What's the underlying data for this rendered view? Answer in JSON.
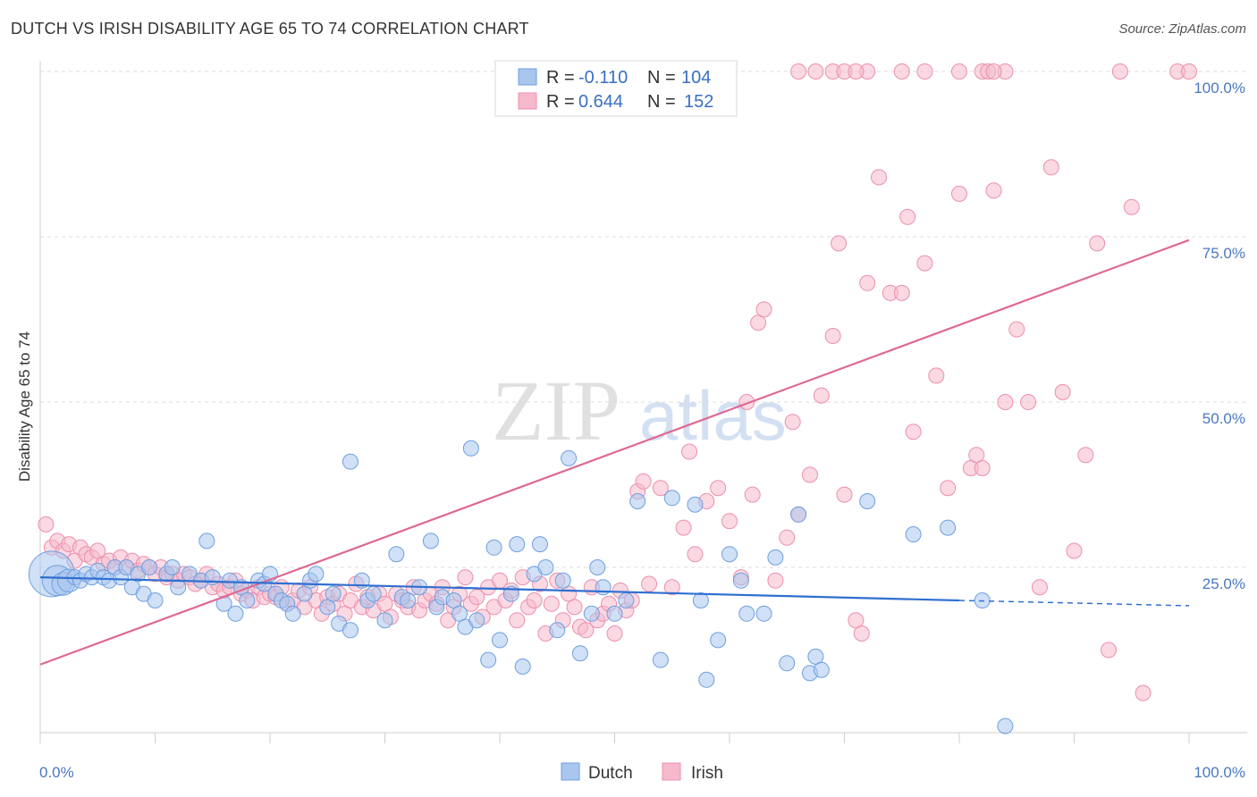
{
  "header": {
    "title": "DUTCH VS IRISH DISABILITY AGE 65 TO 74 CORRELATION CHART",
    "source": "Source: ZipAtlas.com"
  },
  "watermark": {
    "zip": "ZIP",
    "atlas": "atlas"
  },
  "colors": {
    "dutch_fill": "#a9c6ef",
    "dutch_stroke": "#6f9fe0",
    "dutch_line": "#2f6fd0",
    "irish_fill": "#f6b9cc",
    "irish_stroke": "#ec8fab",
    "irish_line": "#e06893"
  },
  "legend": {
    "dutch": {
      "r_label": "R =",
      "r_value": "-0.110",
      "n_label": "N =",
      "n_value": "104"
    },
    "irish": {
      "r_label": "R =",
      "r_value": "0.644",
      "n_label": "N =",
      "n_value": "152"
    }
  },
  "chart_data": {
    "type": "scatter",
    "title": "DUTCH VS IRISH DISABILITY AGE 65 TO 74 CORRELATION CHART",
    "xlabel": "",
    "ylabel": "Disability Age 65 to 74",
    "xlim": [
      0,
      100
    ],
    "ylim": [
      0,
      100
    ],
    "x_tick_labels": [
      "0.0%",
      "100.0%"
    ],
    "y_tick_labels": [
      "25.0%",
      "50.0%",
      "75.0%",
      "100.0%"
    ],
    "y_ticks": [
      25,
      50,
      75,
      100
    ],
    "grid": true,
    "legend_position": "top-center",
    "bottom_legend": [
      "Dutch",
      "Irish"
    ],
    "series": [
      {
        "name": "Dutch",
        "r": -0.11,
        "n": 104,
        "trend": {
          "x0": 0,
          "y0": 23.5,
          "x1": 80,
          "y1": 20.0,
          "dashed_to": 100,
          "dashed_y": 19.2
        },
        "points": [
          [
            1,
            24,
            3
          ],
          [
            1.5,
            23,
            2
          ],
          [
            2,
            22.5,
            1.5
          ],
          [
            2.5,
            23,
            1.5
          ],
          [
            3,
            23.5,
            1
          ],
          [
            3.5,
            23,
            1
          ],
          [
            4,
            24,
            1
          ],
          [
            4.5,
            23.5,
            1
          ],
          [
            5,
            24.5,
            1
          ],
          [
            5.5,
            23.5,
            1
          ],
          [
            6,
            23,
            1
          ],
          [
            6.5,
            25,
            1
          ],
          [
            7,
            23.5,
            1
          ],
          [
            7.5,
            25,
            1
          ],
          [
            8,
            22,
            1
          ],
          [
            8.5,
            24,
            1
          ],
          [
            9,
            21,
            1
          ],
          [
            9.5,
            25,
            1
          ],
          [
            10,
            20,
            1
          ],
          [
            11,
            24,
            1
          ],
          [
            11.5,
            25,
            1
          ],
          [
            12,
            22,
            1
          ],
          [
            13,
            24,
            1
          ],
          [
            14,
            23,
            1
          ],
          [
            14.5,
            29,
            1
          ],
          [
            15,
            23.5,
            1
          ],
          [
            16,
            19.5,
            1
          ],
          [
            16.5,
            23,
            1
          ],
          [
            17,
            18,
            1
          ],
          [
            17.5,
            22,
            1
          ],
          [
            18,
            20,
            1
          ],
          [
            19,
            23,
            1
          ],
          [
            19.5,
            22.5,
            1
          ],
          [
            20,
            24,
            1
          ],
          [
            20.5,
            21,
            1
          ],
          [
            21,
            20,
            1
          ],
          [
            21.5,
            19.5,
            1
          ],
          [
            22,
            18,
            1
          ],
          [
            23,
            21,
            1
          ],
          [
            23.5,
            23,
            1
          ],
          [
            24,
            24,
            1
          ],
          [
            25,
            19,
            1
          ],
          [
            25.5,
            21,
            1
          ],
          [
            26,
            16.5,
            1
          ],
          [
            27,
            41,
            1
          ],
          [
            27,
            15.5,
            1
          ],
          [
            28,
            23,
            1
          ],
          [
            28.5,
            20,
            1
          ],
          [
            29,
            21,
            1
          ],
          [
            30,
            17,
            1
          ],
          [
            31,
            27,
            1
          ],
          [
            31.5,
            20.5,
            1
          ],
          [
            32,
            20,
            1
          ],
          [
            33,
            22,
            1
          ],
          [
            34,
            29,
            1
          ],
          [
            34.5,
            19,
            1
          ],
          [
            35,
            20.5,
            1
          ],
          [
            36,
            20,
            1
          ],
          [
            36.5,
            18,
            1
          ],
          [
            37,
            16,
            1
          ],
          [
            37.5,
            43,
            1
          ],
          [
            38,
            17,
            1
          ],
          [
            39,
            11,
            1
          ],
          [
            39.5,
            28,
            1
          ],
          [
            40,
            14,
            1
          ],
          [
            41,
            21,
            1
          ],
          [
            41.5,
            28.5,
            1
          ],
          [
            42,
            10,
            1
          ],
          [
            43,
            24,
            1
          ],
          [
            43.5,
            28.5,
            1
          ],
          [
            44,
            25,
            1
          ],
          [
            45,
            15.5,
            1
          ],
          [
            45.5,
            23,
            1
          ],
          [
            46,
            41.5,
            1
          ],
          [
            47,
            12,
            1
          ],
          [
            48,
            18,
            1
          ],
          [
            48.5,
            25,
            1
          ],
          [
            49,
            22,
            1
          ],
          [
            50,
            18,
            1
          ],
          [
            51,
            20,
            1
          ],
          [
            52,
            35,
            1
          ],
          [
            54,
            11,
            1
          ],
          [
            55,
            35.5,
            1
          ],
          [
            57,
            34.5,
            1
          ],
          [
            57.5,
            20,
            1
          ],
          [
            58,
            8,
            1
          ],
          [
            59,
            14,
            1
          ],
          [
            60,
            27,
            1
          ],
          [
            61,
            23,
            1
          ],
          [
            61.5,
            18,
            1
          ],
          [
            63,
            18,
            1
          ],
          [
            64,
            26.5,
            1
          ],
          [
            65,
            10.5,
            1
          ],
          [
            66,
            33,
            1
          ],
          [
            67,
            9,
            1
          ],
          [
            67.5,
            11.5,
            1
          ],
          [
            68,
            9.5,
            1
          ],
          [
            72,
            35,
            1
          ],
          [
            76,
            30,
            1
          ],
          [
            79,
            31,
            1
          ],
          [
            82,
            20,
            1
          ],
          [
            84,
            1,
            1
          ]
        ]
      },
      {
        "name": "Irish",
        "r": 0.644,
        "n": 152,
        "trend": {
          "x0": 0,
          "y0": 10.3,
          "x1": 100,
          "y1": 74.5
        },
        "points": [
          [
            0.5,
            31.5
          ],
          [
            1,
            28
          ],
          [
            1.5,
            29
          ],
          [
            2,
            27.5
          ],
          [
            2.5,
            28.5
          ],
          [
            3,
            26
          ],
          [
            3.5,
            28
          ],
          [
            4,
            27
          ],
          [
            4.5,
            26.5
          ],
          [
            5,
            27.5
          ],
          [
            5.5,
            25.5
          ],
          [
            6,
            26
          ],
          [
            6.5,
            25
          ],
          [
            7,
            26.5
          ],
          [
            7.5,
            25
          ],
          [
            8,
            26
          ],
          [
            8.5,
            24.5
          ],
          [
            9,
            25.5
          ],
          [
            9.5,
            25
          ],
          [
            10,
            24
          ],
          [
            10.5,
            25
          ],
          [
            11,
            23.5
          ],
          [
            11.5,
            24
          ],
          [
            12,
            23
          ],
          [
            12.5,
            24
          ],
          [
            13,
            23.5
          ],
          [
            13.5,
            22.5
          ],
          [
            14,
            23
          ],
          [
            14.5,
            24
          ],
          [
            15,
            22
          ],
          [
            15.5,
            22.5
          ],
          [
            16,
            21.5
          ],
          [
            16.5,
            22
          ],
          [
            17,
            23
          ],
          [
            17.5,
            21
          ],
          [
            18,
            21.5
          ],
          [
            18.5,
            20
          ],
          [
            19,
            22
          ],
          [
            19.5,
            20.5
          ],
          [
            20,
            21
          ],
          [
            20.5,
            20.5
          ],
          [
            21,
            22
          ],
          [
            21.5,
            19.5
          ],
          [
            22,
            20
          ],
          [
            22.5,
            21.5
          ],
          [
            23,
            19
          ],
          [
            23.5,
            22
          ],
          [
            24,
            20
          ],
          [
            24.5,
            18
          ],
          [
            25,
            20.5
          ],
          [
            25.5,
            19.5
          ],
          [
            26,
            21
          ],
          [
            26.5,
            18
          ],
          [
            27,
            20
          ],
          [
            27.5,
            22.5
          ],
          [
            28,
            19
          ],
          [
            28.5,
            20.5
          ],
          [
            29,
            18.5
          ],
          [
            29.5,
            21
          ],
          [
            30,
            19.5
          ],
          [
            30.5,
            17.5
          ],
          [
            31,
            21
          ],
          [
            31.5,
            20
          ],
          [
            32,
            19
          ],
          [
            32.5,
            22
          ],
          [
            33,
            18.5
          ],
          [
            33.5,
            20
          ],
          [
            34,
            21
          ],
          [
            34.5,
            19.5
          ],
          [
            35,
            22
          ],
          [
            35.5,
            17
          ],
          [
            36,
            19
          ],
          [
            36.5,
            21
          ],
          [
            37,
            23.5
          ],
          [
            37.5,
            19.5
          ],
          [
            38,
            20.5
          ],
          [
            38.5,
            17.5
          ],
          [
            39,
            22
          ],
          [
            39.5,
            19
          ],
          [
            40,
            23
          ],
          [
            40.5,
            20
          ],
          [
            41,
            21.5
          ],
          [
            41.5,
            17
          ],
          [
            42,
            23.5
          ],
          [
            42.5,
            19
          ],
          [
            43,
            20
          ],
          [
            43.5,
            22.5
          ],
          [
            44,
            15
          ],
          [
            44.5,
            19.5
          ],
          [
            45,
            23
          ],
          [
            45.5,
            17
          ],
          [
            46,
            21
          ],
          [
            46.5,
            19
          ],
          [
            47,
            16
          ],
          [
            47.5,
            15.5
          ],
          [
            48,
            22
          ],
          [
            48.5,
            17
          ],
          [
            49,
            18
          ],
          [
            49.5,
            19.5
          ],
          [
            50,
            15
          ],
          [
            50.5,
            21.5
          ],
          [
            51,
            18.5
          ],
          [
            51.5,
            20
          ],
          [
            52,
            36.5
          ],
          [
            52.5,
            38
          ],
          [
            53,
            22.5
          ],
          [
            54,
            37
          ],
          [
            55,
            22
          ],
          [
            56,
            31
          ],
          [
            56.5,
            42.5
          ],
          [
            57,
            27
          ],
          [
            58,
            35
          ],
          [
            59,
            37
          ],
          [
            60,
            32
          ],
          [
            61,
            23.5
          ],
          [
            61.5,
            50
          ],
          [
            62,
            36
          ],
          [
            62.5,
            62
          ],
          [
            63,
            64
          ],
          [
            64,
            23
          ],
          [
            65,
            29.5
          ],
          [
            65.5,
            47
          ],
          [
            66,
            33
          ],
          [
            67,
            39
          ],
          [
            68,
            51
          ],
          [
            69,
            60
          ],
          [
            69.5,
            74
          ],
          [
            70,
            36
          ],
          [
            71,
            17
          ],
          [
            71.5,
            15
          ],
          [
            72,
            68
          ],
          [
            73,
            84
          ],
          [
            74,
            66.5
          ],
          [
            75,
            66.5
          ],
          [
            75.5,
            78
          ],
          [
            76,
            45.5
          ],
          [
            77,
            71
          ],
          [
            78,
            54
          ],
          [
            79,
            37
          ],
          [
            80,
            81.5
          ],
          [
            81,
            40
          ],
          [
            81.5,
            42
          ],
          [
            82,
            40
          ],
          [
            83,
            82
          ],
          [
            84,
            50
          ],
          [
            85,
            61
          ],
          [
            86,
            50
          ],
          [
            87,
            22
          ],
          [
            88,
            85.5
          ],
          [
            89,
            51.5
          ],
          [
            90,
            27.5
          ],
          [
            91,
            42
          ],
          [
            92,
            74
          ],
          [
            93,
            12.5
          ],
          [
            95,
            79.5
          ],
          [
            96,
            6
          ],
          [
            66,
            100
          ],
          [
            69,
            100
          ],
          [
            70,
            100
          ],
          [
            72,
            100
          ],
          [
            75,
            100
          ],
          [
            77,
            100
          ],
          [
            80,
            100
          ],
          [
            82,
            100
          ],
          [
            84,
            100
          ],
          [
            94,
            100
          ],
          [
            99,
            100
          ],
          [
            100,
            100
          ],
          [
            67.5,
            100
          ],
          [
            71,
            100
          ],
          [
            82.5,
            100
          ],
          [
            83,
            100
          ]
        ]
      }
    ]
  }
}
